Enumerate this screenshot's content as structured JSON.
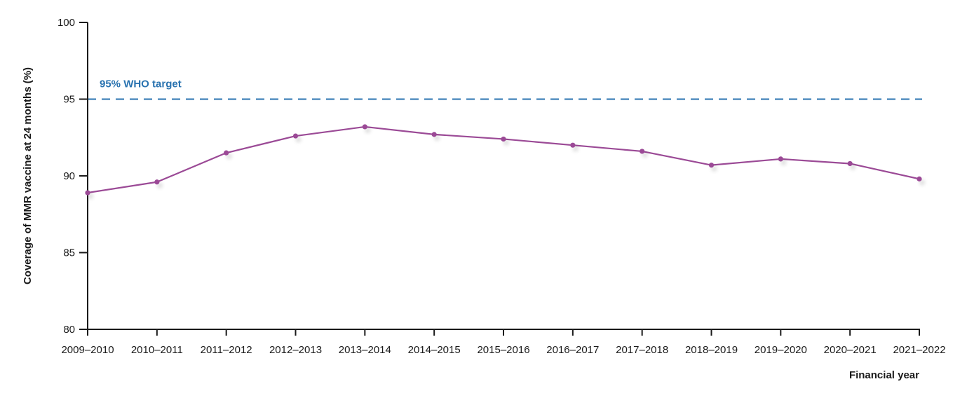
{
  "chart_data": {
    "type": "line",
    "title": "",
    "xlabel": "Financial year",
    "ylabel": "Coverage of MMR vaccine at 24 months (%)",
    "ylim": [
      80,
      100
    ],
    "yticks": [
      80,
      85,
      90,
      95,
      100
    ],
    "grid": false,
    "categories": [
      "2009–2010",
      "2010–2011",
      "2011–2012",
      "2012–2013",
      "2013–2014",
      "2014–2015",
      "2015–2016",
      "2016–2017",
      "2017–2018",
      "2018–2019",
      "2019–2020",
      "2020–2021",
      "2021–2022"
    ],
    "series": [
      {
        "values": [
          88.9,
          89.6,
          91.5,
          92.6,
          93.2,
          92.7,
          92.4,
          92.0,
          91.6,
          90.7,
          91.1,
          90.8,
          89.8
        ],
        "color": "#9b4a96"
      }
    ],
    "reference_line": {
      "value": 95,
      "label": "95% WHO target",
      "color": "#2a73b0",
      "style": "dashed"
    }
  }
}
